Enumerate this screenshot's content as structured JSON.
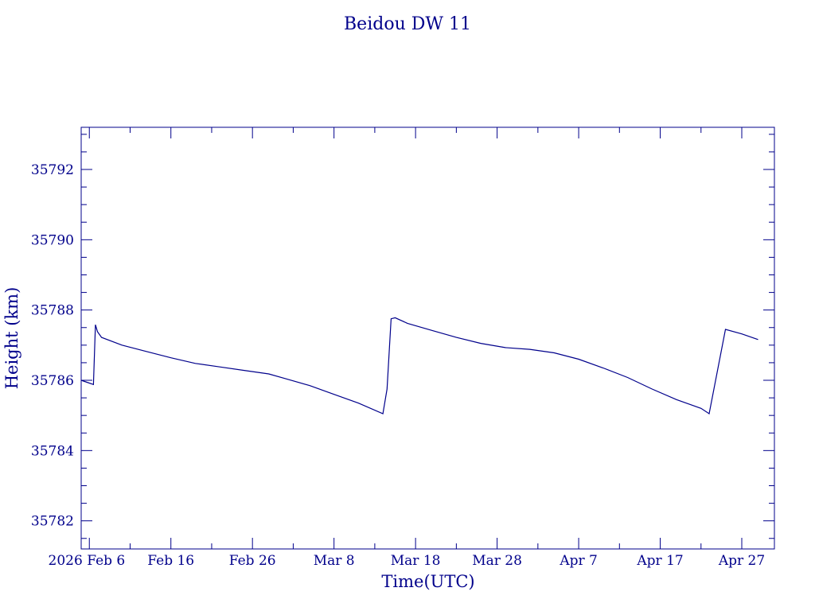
{
  "colors": {
    "ink": "#00008b",
    "background": "#ffffff"
  },
  "chart_data": {
    "type": "line",
    "title": "Beidou DW 11",
    "xlabel": "Time(UTC)",
    "ylabel": "Height (km)",
    "xlim": [
      "2026-02-05",
      "2026-05-01"
    ],
    "ylim": [
      35781.2,
      35793.2
    ],
    "grid": false,
    "x_ticks": [
      {
        "date": "2026-02-06",
        "label": "2026 Feb 6"
      },
      {
        "date": "2026-02-16",
        "label": "Feb 16"
      },
      {
        "date": "2026-02-26",
        "label": "Feb 26"
      },
      {
        "date": "2026-03-08",
        "label": "Mar  8"
      },
      {
        "date": "2026-03-18",
        "label": "Mar 18"
      },
      {
        "date": "2026-03-28",
        "label": "Mar 28"
      },
      {
        "date": "2026-04-07",
        "label": "Apr  7"
      },
      {
        "date": "2026-04-17",
        "label": "Apr 17"
      },
      {
        "date": "2026-04-27",
        "label": "Apr 27"
      }
    ],
    "y_ticks": [
      35782,
      35784,
      35786,
      35788,
      35790,
      35792
    ],
    "series": [
      {
        "points": [
          [
            "2026-02-05",
            35786.0
          ],
          [
            "2026-02-06",
            35785.92
          ],
          [
            "2026-02-06T12:00",
            35785.88
          ],
          [
            "2026-02-06T18:00",
            35787.58
          ],
          [
            "2026-02-07",
            35787.38
          ],
          [
            "2026-02-07T12:00",
            35787.22
          ],
          [
            "2026-02-10",
            35787.0
          ],
          [
            "2026-02-13",
            35786.82
          ],
          [
            "2026-02-16",
            35786.64
          ],
          [
            "2026-02-19",
            35786.48
          ],
          [
            "2026-02-22",
            35786.38
          ],
          [
            "2026-02-25",
            35786.28
          ],
          [
            "2026-02-28",
            35786.18
          ],
          [
            "2026-03-02",
            35786.05
          ],
          [
            "2026-03-05",
            35785.85
          ],
          [
            "2026-03-08",
            35785.6
          ],
          [
            "2026-03-11",
            35785.35
          ],
          [
            "2026-03-14",
            35785.05
          ],
          [
            "2026-03-14T12:00",
            35785.75
          ],
          [
            "2026-03-15",
            35787.75
          ],
          [
            "2026-03-15T12:00",
            35787.78
          ],
          [
            "2026-03-17",
            35787.62
          ],
          [
            "2026-03-20",
            35787.42
          ],
          [
            "2026-03-23",
            35787.22
          ],
          [
            "2026-03-26",
            35787.05
          ],
          [
            "2026-03-29",
            35786.93
          ],
          [
            "2026-04-01",
            35786.88
          ],
          [
            "2026-04-04",
            35786.78
          ],
          [
            "2026-04-07",
            35786.6
          ],
          [
            "2026-04-10",
            35786.35
          ],
          [
            "2026-04-13",
            35786.08
          ],
          [
            "2026-04-16",
            35785.75
          ],
          [
            "2026-04-19",
            35785.45
          ],
          [
            "2026-04-22",
            35785.2
          ],
          [
            "2026-04-23",
            35785.05
          ],
          [
            "2026-04-25",
            35787.45
          ],
          [
            "2026-04-27",
            35787.32
          ],
          [
            "2026-04-29",
            35787.16
          ]
        ]
      }
    ]
  }
}
